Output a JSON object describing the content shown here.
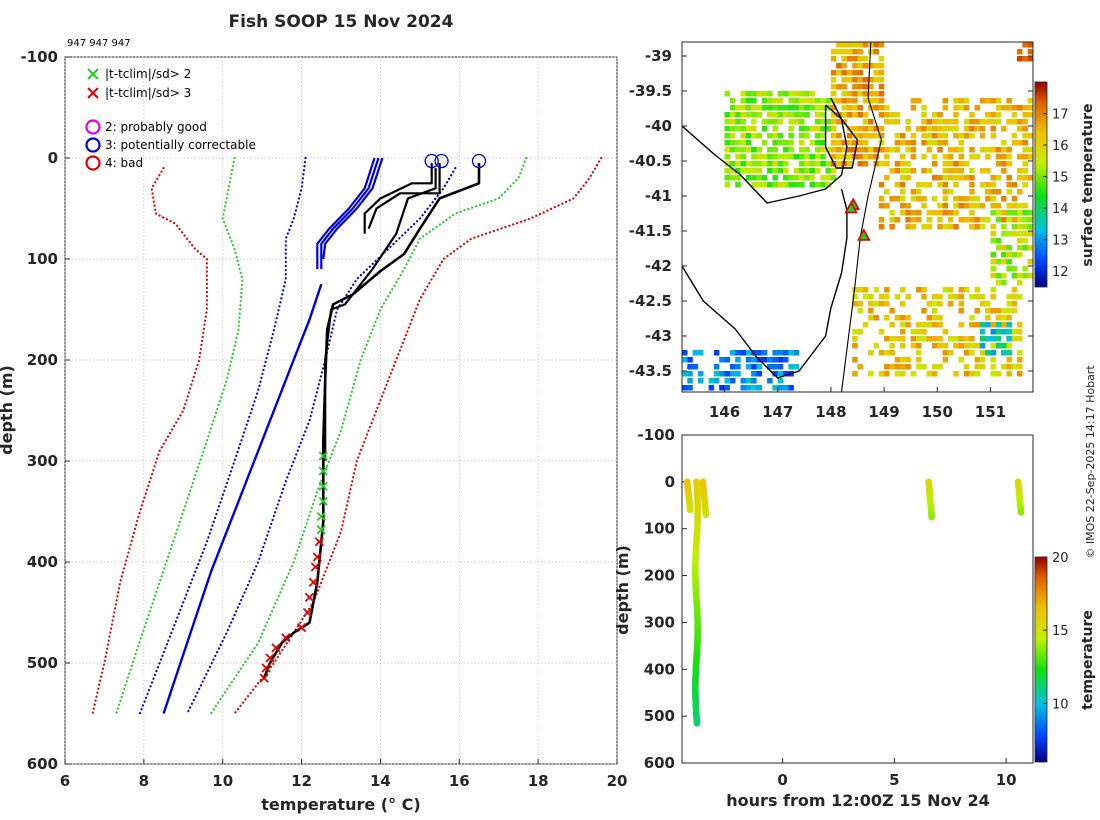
{
  "header": {
    "title": "Fish SOOP 15 Nov 2024",
    "ids": "947 947 947"
  },
  "side_note": "© IMOS 22-Sep-2025 14:17 Hobart",
  "chart_data": [
    {
      "id": "profile",
      "type": "line",
      "xlabel": "temperature (° C)",
      "ylabel": "depth (m)",
      "xlim": [
        6,
        20
      ],
      "ylim": [
        600,
        -100
      ],
      "xticks": [
        6,
        8,
        10,
        12,
        14,
        16,
        18,
        20
      ],
      "yticks": [
        -100,
        0,
        100,
        200,
        300,
        400,
        500,
        600
      ],
      "grid": true,
      "legend": [
        {
          "marker": "x",
          "color": "#22cc22",
          "label": "|t-tclim|/sd> 2"
        },
        {
          "marker": "x",
          "color": "#dd0000",
          "label": "|t-tclim|/sd> 3"
        },
        {
          "marker": "o",
          "color": "#dd00dd",
          "label": "2: probably good"
        },
        {
          "marker": "o",
          "color": "#0000dd",
          "label": "3: potentially correctable"
        },
        {
          "marker": "o",
          "color": "#dd0000",
          "label": "4: bad"
        }
      ],
      "series": [
        {
          "name": "clim -3sd",
          "color": "#dd0000",
          "style": "dotted",
          "points": [
            [
              8.5,
              10
            ],
            [
              8.2,
              30
            ],
            [
              8.3,
              55
            ],
            [
              8.8,
              65
            ],
            [
              9.3,
              90
            ],
            [
              9.6,
              100
            ],
            [
              9.6,
              150
            ],
            [
              9.4,
              200
            ],
            [
              9.0,
              250
            ],
            [
              8.4,
              290
            ],
            [
              7.9,
              350
            ],
            [
              7.4,
              420
            ],
            [
              7.0,
              500
            ],
            [
              6.7,
              550
            ]
          ]
        },
        {
          "name": "clim -2sd",
          "color": "#22cc22",
          "style": "dotted",
          "points": [
            [
              10.3,
              0
            ],
            [
              10.2,
              20
            ],
            [
              10.0,
              60
            ],
            [
              10.3,
              90
            ],
            [
              10.5,
              120
            ],
            [
              10.4,
              170
            ],
            [
              10.1,
              220
            ],
            [
              9.6,
              280
            ],
            [
              9.0,
              350
            ],
            [
              8.4,
              420
            ],
            [
              7.8,
              490
            ],
            [
              7.3,
              550
            ]
          ]
        },
        {
          "name": "clim -1sd",
          "color": "#0000dd",
          "style": "dotted",
          "points": [
            [
              12.1,
              0
            ],
            [
              12.0,
              30
            ],
            [
              11.8,
              60
            ],
            [
              11.6,
              80
            ],
            [
              11.6,
              120
            ],
            [
              11.3,
              170
            ],
            [
              10.9,
              230
            ],
            [
              10.3,
              300
            ],
            [
              9.6,
              380
            ],
            [
              8.8,
              460
            ],
            [
              7.9,
              550
            ]
          ]
        },
        {
          "name": "clim mean",
          "color": "#0000dd",
          "style": "solid",
          "points": [
            [
              12.5,
              125
            ],
            [
              12.2,
              160
            ],
            [
              11.7,
              210
            ],
            [
              11.1,
              270
            ],
            [
              10.4,
              340
            ],
            [
              9.7,
              410
            ],
            [
              9.1,
              480
            ],
            [
              8.5,
              550
            ]
          ]
        },
        {
          "name": "clim +1sd",
          "color": "#0000dd",
          "style": "dotted",
          "points": [
            [
              15.9,
              10
            ],
            [
              15.6,
              30
            ],
            [
              15.0,
              60
            ],
            [
              14.2,
              90
            ],
            [
              13.4,
              120
            ],
            [
              12.9,
              150
            ],
            [
              12.6,
              200
            ],
            [
              12.2,
              260
            ],
            [
              11.6,
              320
            ],
            [
              10.9,
              400
            ],
            [
              10.1,
              470
            ],
            [
              9.1,
              550
            ]
          ]
        },
        {
          "name": "clim +2sd",
          "color": "#22cc22",
          "style": "dotted",
          "points": [
            [
              17.7,
              0
            ],
            [
              17.5,
              20
            ],
            [
              17.0,
              40
            ],
            [
              15.9,
              55
            ],
            [
              15.0,
              80
            ],
            [
              14.6,
              110
            ],
            [
              14.0,
              150
            ],
            [
              13.5,
              200
            ],
            [
              13.0,
              270
            ],
            [
              12.4,
              330
            ],
            [
              11.8,
              400
            ],
            [
              10.9,
              480
            ],
            [
              9.7,
              550
            ]
          ]
        },
        {
          "name": "clim +3sd",
          "color": "#dd0000",
          "style": "dotted",
          "points": [
            [
              19.6,
              0
            ],
            [
              19.3,
              20
            ],
            [
              18.9,
              40
            ],
            [
              17.8,
              60
            ],
            [
              16.3,
              80
            ],
            [
              15.6,
              100
            ],
            [
              15.0,
              140
            ],
            [
              14.6,
              180
            ],
            [
              14.0,
              240
            ],
            [
              13.4,
              300
            ],
            [
              13.0,
              370
            ],
            [
              12.3,
              440
            ],
            [
              11.3,
              500
            ],
            [
              10.3,
              550
            ]
          ]
        },
        {
          "name": "cast 1",
          "color": "#0000dd",
          "style": "solid",
          "width": 2.2,
          "points": [
            [
              13.85,
              0
            ],
            [
              13.6,
              30
            ],
            [
              13.2,
              50
            ],
            [
              12.7,
              70
            ],
            [
              12.4,
              85
            ],
            [
              12.4,
              110
            ]
          ]
        },
        {
          "name": "cast 2",
          "color": "#0000dd",
          "style": "solid",
          "width": 2.2,
          "points": [
            [
              13.95,
              0
            ],
            [
              13.7,
              30
            ],
            [
              13.3,
              50
            ],
            [
              12.8,
              70
            ],
            [
              12.5,
              85
            ],
            [
              12.5,
              110
            ]
          ]
        },
        {
          "name": "cast 3",
          "color": "#0000dd",
          "style": "solid",
          "width": 2.2,
          "points": [
            [
              14.05,
              0
            ],
            [
              13.8,
              30
            ],
            [
              13.4,
              50
            ],
            [
              12.9,
              70
            ],
            [
              12.6,
              85
            ],
            [
              12.55,
              100
            ]
          ]
        },
        {
          "name": "cast 4",
          "color": "#000000",
          "style": "solid",
          "width": 2.2,
          "points": [
            [
              15.3,
              5
            ],
            [
              15.3,
              25
            ],
            [
              14.8,
              25
            ],
            [
              14.0,
              40
            ],
            [
              13.6,
              55
            ],
            [
              13.6,
              75
            ]
          ]
        },
        {
          "name": "cast 5",
          "color": "#000000",
          "style": "solid",
          "width": 2.2,
          "points": [
            [
              15.5,
              5
            ],
            [
              15.5,
              35
            ],
            [
              14.5,
              35
            ],
            [
              13.9,
              50
            ],
            [
              13.7,
              70
            ]
          ]
        },
        {
          "name": "cast 6",
          "color": "#000000",
          "style": "solid",
          "width": 2.6,
          "points": [
            [
              16.5,
              5
            ],
            [
              16.5,
              25
            ],
            [
              15.5,
              40
            ],
            [
              15.0,
              70
            ],
            [
              14.6,
              95
            ],
            [
              14.0,
              112
            ],
            [
              13.3,
              135
            ],
            [
              12.8,
              145
            ],
            [
              12.65,
              170
            ],
            [
              12.6,
              220
            ],
            [
              12.55,
              280
            ],
            [
              12.55,
              360
            ],
            [
              12.4,
              420
            ],
            [
              12.2,
              460
            ],
            [
              11.8,
              470
            ],
            [
              11.5,
              480
            ],
            [
              11.2,
              500
            ],
            [
              11.05,
              515
            ]
          ]
        },
        {
          "name": "cast 7",
          "color": "#000000",
          "style": "solid",
          "width": 2.2,
          "points": [
            [
              15.4,
              10
            ],
            [
              15.4,
              30
            ],
            [
              14.7,
              40
            ],
            [
              14.4,
              75
            ],
            [
              13.8,
              110
            ],
            [
              13.1,
              145
            ],
            [
              12.75,
              150
            ],
            [
              12.6,
              200
            ],
            [
              12.6,
              300
            ]
          ]
        }
      ],
      "flag2_x_points": [
        [
          12.55,
          295
        ],
        [
          12.55,
          310
        ],
        [
          12.55,
          325
        ],
        [
          12.55,
          340
        ],
        [
          12.5,
          355
        ],
        [
          12.5,
          368
        ]
      ],
      "flag3_x_points": [
        [
          12.45,
          380
        ],
        [
          12.4,
          395
        ],
        [
          12.35,
          405
        ],
        [
          12.3,
          420
        ],
        [
          12.2,
          435
        ],
        [
          12.15,
          450
        ],
        [
          12.0,
          465
        ],
        [
          11.6,
          475
        ],
        [
          11.35,
          485
        ],
        [
          11.2,
          495
        ],
        [
          11.1,
          505
        ],
        [
          11.05,
          515
        ]
      ],
      "circle_points": [
        [
          15.3,
          3
        ],
        [
          15.55,
          3
        ],
        [
          16.5,
          3
        ]
      ]
    },
    {
      "id": "map",
      "type": "heatmap",
      "colorbar_label": "surface temperature",
      "clim": [
        11.5,
        18
      ],
      "colorbar_ticks": [
        12,
        13,
        14,
        15,
        16,
        17
      ],
      "xlim": [
        145.2,
        151.8
      ],
      "ylim": [
        -43.8,
        -38.8
      ],
      "xticks": [
        146,
        147,
        148,
        149,
        150,
        151
      ],
      "yticks": [
        -39,
        -39.5,
        -40,
        -40.5,
        -41,
        -41.5,
        -42,
        -42.5,
        -43,
        -43.5
      ],
      "ship_track": [
        [
          148.75,
          -38.8
        ],
        [
          148.7,
          -39.6
        ],
        [
          148.95,
          -40.2
        ],
        [
          148.7,
          -41.0
        ],
        [
          148.55,
          -41.6
        ],
        [
          148.45,
          -42.3
        ],
        [
          148.35,
          -42.9
        ],
        [
          148.25,
          -43.5
        ],
        [
          148.2,
          -43.8
        ]
      ],
      "stations": [
        [
          148.42,
          -41.13
        ],
        [
          148.38,
          -41.18
        ],
        [
          148.62,
          -41.57
        ]
      ]
    },
    {
      "id": "section",
      "type": "scatter",
      "xlabel": "hours from 12:00Z 15 Nov 24",
      "ylabel": "depth (m)",
      "xlim": [
        -4.5,
        11.2
      ],
      "ylim": [
        600,
        -100
      ],
      "xticks": [
        0,
        5,
        10
      ],
      "yticks": [
        -100,
        0,
        100,
        200,
        300,
        400,
        500,
        600
      ],
      "colorbar_label": "temperature",
      "clim": [
        6,
        20
      ],
      "colorbar_ticks": [
        10,
        15,
        20
      ],
      "casts": [
        {
          "hour": -4.2,
          "max_depth": 60,
          "temp_top": 16.5,
          "temp_bottom": 15.0
        },
        {
          "hour": -3.85,
          "max_depth": 515,
          "temp_top": 16.0,
          "temp_bottom": 11.2
        },
        {
          "hour": -3.5,
          "max_depth": 70,
          "temp_top": 16.3,
          "temp_bottom": 15.2
        },
        {
          "hour": 6.6,
          "max_depth": 75,
          "temp_top": 15.6,
          "temp_bottom": 13.8
        },
        {
          "hour": 10.6,
          "max_depth": 65,
          "temp_top": 15.6,
          "temp_bottom": 13.8
        }
      ]
    }
  ]
}
